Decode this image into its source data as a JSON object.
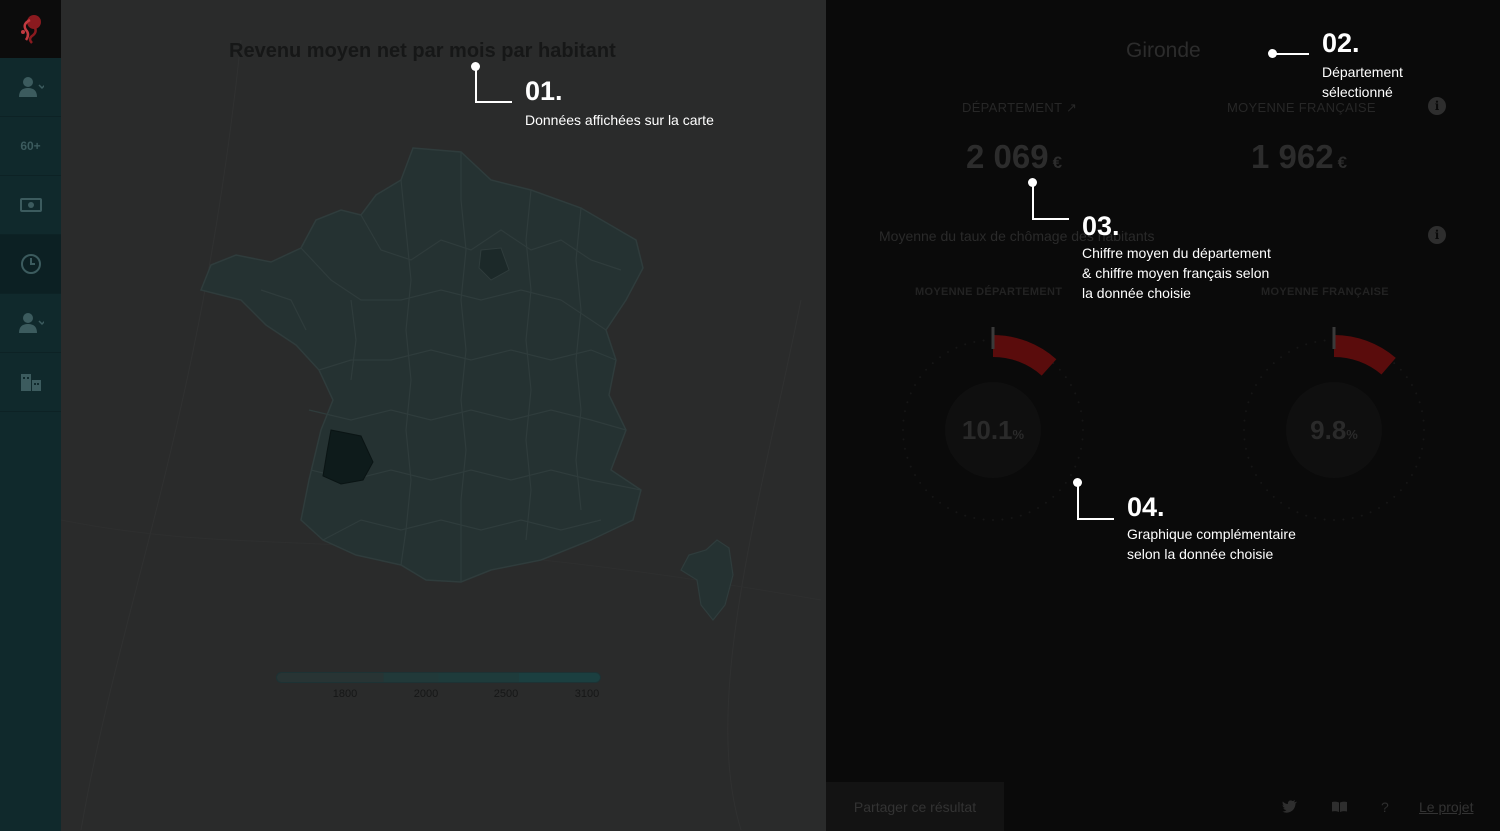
{
  "map_panel": {
    "title": "Revenu moyen net par mois par habitant",
    "legend_ticks": [
      "1800",
      "2000",
      "2500",
      "3100"
    ]
  },
  "sidebar": {
    "items": [
      {
        "icon": "person-icon"
      },
      {
        "icon": "age-60-icon",
        "label": "60+"
      },
      {
        "icon": "banknote-icon"
      },
      {
        "icon": "clock-icon"
      },
      {
        "icon": "person-settings-icon"
      },
      {
        "icon": "building-icon"
      }
    ]
  },
  "details": {
    "department_name": "Gironde",
    "dept_label": "DÉPARTEMENT ↗",
    "dept_value": "2 069",
    "fr_label": "MOYENNE FRANÇAISE",
    "fr_value": "1 962",
    "currency": "€",
    "unemployment_title": "Moyenne du taux de chômage des habitants",
    "gauge_dept_label": "MOYENNE DÉPARTEMENT",
    "gauge_fr_label": "MOYENNE FRANÇAISE",
    "gauge_dept_value": "10.1",
    "gauge_fr_value": "9.8",
    "percent_unit": "%",
    "gauge_dept_fraction": 0.101,
    "gauge_fr_fraction": 0.098,
    "gauge_color": "#5a0c0c"
  },
  "footer": {
    "share_label": "Partager ce résultat",
    "help_label": "?",
    "project_label": "Le projet",
    "icons": [
      "twitter-icon",
      "book-icon"
    ]
  },
  "annotations": [
    {
      "num": "01.",
      "text": "Données affichées sur la carte"
    },
    {
      "num": "02.",
      "text_lines": [
        "Département",
        "sélectionné"
      ]
    },
    {
      "num": "03.",
      "text_lines": [
        "Chiffre moyen du département",
        "& chiffre moyen français selon",
        "la donnée choisie"
      ]
    },
    {
      "num": "04.",
      "text_lines": [
        "Graphique complémentaire",
        "selon la donnée choisie"
      ]
    }
  ],
  "colors": {
    "selected_department": "#0e1b1b",
    "map_fill": "#253232",
    "map_stroke": "#2f3c3c"
  }
}
